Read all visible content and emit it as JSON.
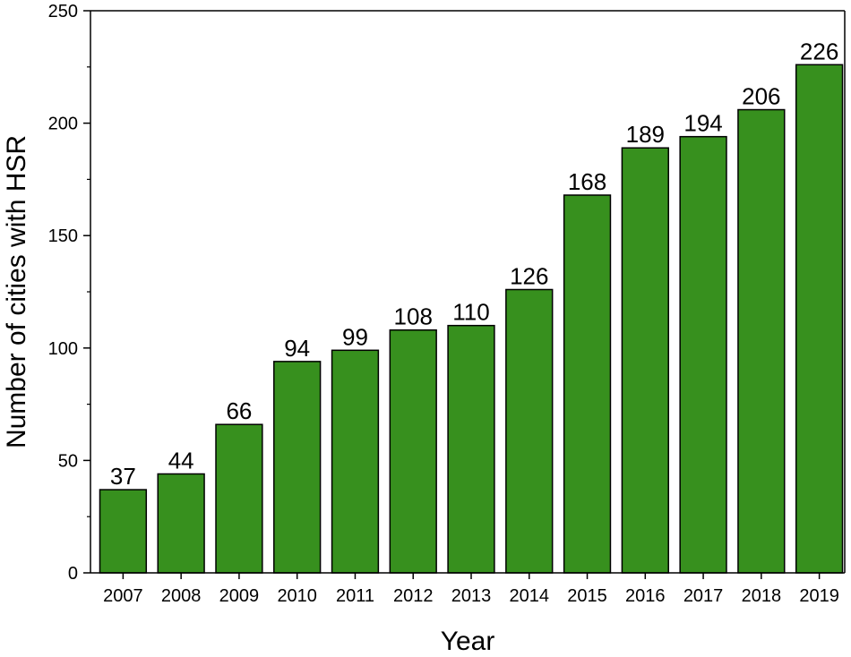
{
  "chart_data": {
    "type": "bar",
    "title": "",
    "xlabel": "Year",
    "ylabel": "Number of cities with HSR",
    "categories": [
      "2007",
      "2008",
      "2009",
      "2010",
      "2011",
      "2012",
      "2013",
      "2014",
      "2015",
      "2016",
      "2017",
      "2018",
      "2019"
    ],
    "series": [
      {
        "values": [
          37,
          44,
          66,
          94,
          99,
          108,
          110,
          126,
          168,
          189,
          194,
          206,
          226
        ],
        "color": "#37901e"
      }
    ],
    "ylim": [
      0,
      250
    ],
    "yticks": [
      0,
      50,
      100,
      150,
      200,
      250
    ],
    "grid": false,
    "legend": "none",
    "data_labels": true
  }
}
